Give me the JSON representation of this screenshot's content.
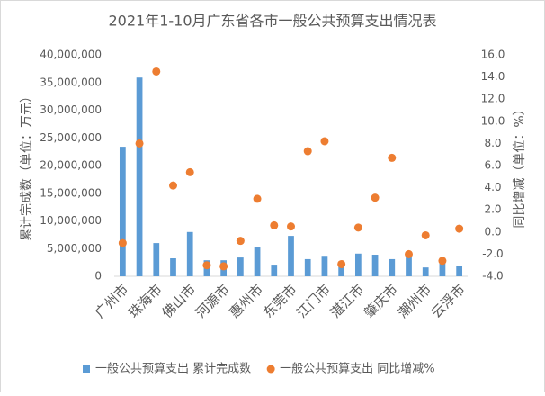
{
  "chart_data": {
    "type": "bar",
    "title": "2021年1-10月广东省各市一般公共预算支出情况表",
    "y_label": "累计完成数（单位：万元）",
    "y2_label": "同比增减（单位：%）",
    "categories": [
      "广州市",
      null,
      "珠海市",
      null,
      "佛山市",
      null,
      "河源市",
      null,
      "惠州市",
      null,
      "东莞市",
      null,
      "江门市",
      null,
      "湛江市",
      null,
      "肇庆市",
      null,
      "潮州市",
      null,
      "云浮市"
    ],
    "series": [
      {
        "name": "一般公共预算支出 累计完成数",
        "type": "bar",
        "color": "#5b9bd5",
        "values": [
          23400000,
          35900000,
          6000000,
          3250000,
          8000000,
          2900000,
          2900000,
          3400000,
          5200000,
          2100000,
          7300000,
          3100000,
          3700000,
          1900000,
          4100000,
          3900000,
          3100000,
          4000000,
          1600000,
          2600000,
          1900000
        ]
      },
      {
        "name": "一般公共预算支出 同比增减%",
        "type": "scatter",
        "axis": "y2",
        "color": "#ed7d31",
        "values": [
          -1.0,
          8.0,
          14.5,
          4.2,
          5.4,
          -3.0,
          -3.1,
          -0.8,
          3.0,
          0.6,
          0.5,
          7.3,
          8.2,
          -2.9,
          0.4,
          3.1,
          6.7,
          -2.0,
          -0.3,
          -2.6,
          0.3
        ]
      }
    ],
    "ylim": [
      0,
      40000000
    ],
    "yticks": [
      0,
      {
        "value": 5000000,
        "label": "5,000,000"
      },
      {
        "value": 10000000,
        "label": "10,000,000"
      },
      {
        "value": 15000000,
        "label": "15,000,000"
      },
      {
        "value": 20000000,
        "label": "20,000,000"
      },
      {
        "value": 25000000,
        "label": "25,000,000"
      },
      {
        "value": 30000000,
        "label": "30,000,000"
      },
      {
        "value": 35000000,
        "label": "35,000,000"
      },
      {
        "value": 40000000,
        "label": "40,000,000"
      }
    ],
    "y2lim": [
      -4,
      16
    ],
    "y2ticks": [
      {
        "value": -4,
        "label": "-4.0"
      },
      {
        "value": -2,
        "label": "-2.0"
      },
      {
        "value": 0,
        "label": "0.0"
      },
      {
        "value": 2,
        "label": "2.0"
      },
      {
        "value": 4,
        "label": "4.0"
      },
      {
        "value": 6,
        "label": "6.0"
      },
      {
        "value": 8,
        "label": "8.0"
      },
      {
        "value": 10,
        "label": "10.0"
      },
      {
        "value": 12,
        "label": "12.0"
      },
      {
        "value": 14,
        "label": "14.0"
      },
      {
        "value": 16,
        "label": "16.0"
      }
    ],
    "legend": "bottom"
  }
}
